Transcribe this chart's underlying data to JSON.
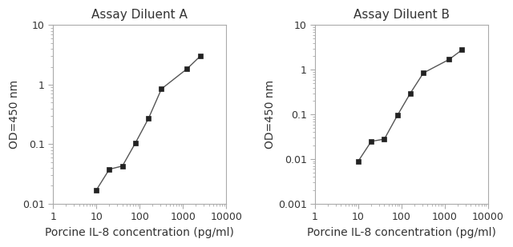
{
  "title_A": "Assay Diluent A",
  "title_B": "Assay Diluent B",
  "xlabel": "Porcine IL-8 concentration (pg/ml)",
  "ylabel": "OD=450 nm",
  "x_A": [
    10,
    20,
    40,
    80,
    160,
    320,
    1250,
    2500
  ],
  "y_A": [
    0.017,
    0.038,
    0.043,
    0.105,
    0.27,
    0.85,
    1.85,
    3.0
  ],
  "x_B": [
    10,
    20,
    40,
    80,
    160,
    320,
    1250,
    2500
  ],
  "y_B": [
    0.009,
    0.025,
    0.028,
    0.095,
    0.3,
    0.85,
    1.7,
    2.8
  ],
  "xlim": [
    1,
    10000
  ],
  "ylim_A": [
    0.01,
    10
  ],
  "ylim_B": [
    0.001,
    10
  ],
  "yticks_A": [
    0.01,
    0.1,
    1,
    10
  ],
  "yticks_B": [
    0.001,
    0.01,
    0.1,
    1,
    10
  ],
  "xticks": [
    1,
    10,
    100,
    1000,
    10000
  ],
  "line_color": "#555555",
  "marker_color": "#222222",
  "title_fontsize": 11,
  "label_fontsize": 10,
  "tick_fontsize": 9,
  "bg_color": "#ffffff"
}
